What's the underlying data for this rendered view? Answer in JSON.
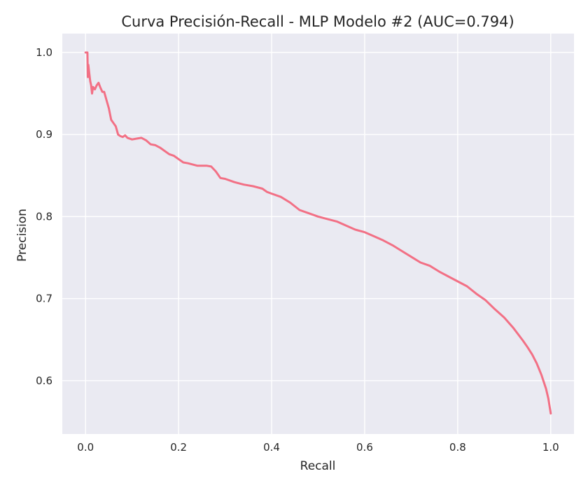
{
  "chart_data": {
    "type": "line",
    "title": "Curva Precisión-Recall - MLP Modelo #2 (AUC=0.794)",
    "xlabel": "Recall",
    "ylabel": "Precision",
    "xlim": [
      -0.05,
      1.05
    ],
    "ylim": [
      0.535,
      1.023
    ],
    "xticks": [
      0.0,
      0.2,
      0.4,
      0.6,
      0.8,
      1.0
    ],
    "xtick_labels": [
      "0.0",
      "0.2",
      "0.4",
      "0.6",
      "0.8",
      "1.0"
    ],
    "yticks": [
      0.6,
      0.7,
      0.8,
      0.9,
      1.0
    ],
    "ytick_labels": [
      "0.6",
      "0.7",
      "0.8",
      "0.9",
      "1.0"
    ],
    "grid": true,
    "background_color": "#eaeaf2",
    "series": [
      {
        "color": "#f27085",
        "points": [
          [
            0.0,
            1.0
          ],
          [
            0.004,
            1.0
          ],
          [
            0.005,
            0.97
          ],
          [
            0.006,
            0.985
          ],
          [
            0.008,
            0.975
          ],
          [
            0.01,
            0.965
          ],
          [
            0.012,
            0.96
          ],
          [
            0.014,
            0.95
          ],
          [
            0.016,
            0.958
          ],
          [
            0.02,
            0.955
          ],
          [
            0.024,
            0.96
          ],
          [
            0.028,
            0.963
          ],
          [
            0.032,
            0.957
          ],
          [
            0.036,
            0.952
          ],
          [
            0.04,
            0.952
          ],
          [
            0.045,
            0.942
          ],
          [
            0.05,
            0.932
          ],
          [
            0.055,
            0.918
          ],
          [
            0.06,
            0.914
          ],
          [
            0.065,
            0.91
          ],
          [
            0.07,
            0.9
          ],
          [
            0.075,
            0.898
          ],
          [
            0.08,
            0.897
          ],
          [
            0.085,
            0.899
          ],
          [
            0.09,
            0.896
          ],
          [
            0.1,
            0.894
          ],
          [
            0.11,
            0.895
          ],
          [
            0.12,
            0.896
          ],
          [
            0.13,
            0.893
          ],
          [
            0.14,
            0.888
          ],
          [
            0.15,
            0.887
          ],
          [
            0.16,
            0.884
          ],
          [
            0.17,
            0.88
          ],
          [
            0.18,
            0.876
          ],
          [
            0.19,
            0.874
          ],
          [
            0.2,
            0.87
          ],
          [
            0.21,
            0.866
          ],
          [
            0.22,
            0.865
          ],
          [
            0.24,
            0.862
          ],
          [
            0.26,
            0.862
          ],
          [
            0.27,
            0.861
          ],
          [
            0.28,
            0.855
          ],
          [
            0.29,
            0.847
          ],
          [
            0.3,
            0.846
          ],
          [
            0.32,
            0.842
          ],
          [
            0.34,
            0.839
          ],
          [
            0.36,
            0.837
          ],
          [
            0.38,
            0.834
          ],
          [
            0.39,
            0.83
          ],
          [
            0.4,
            0.828
          ],
          [
            0.42,
            0.824
          ],
          [
            0.44,
            0.817
          ],
          [
            0.46,
            0.808
          ],
          [
            0.48,
            0.804
          ],
          [
            0.5,
            0.8
          ],
          [
            0.52,
            0.797
          ],
          [
            0.54,
            0.794
          ],
          [
            0.56,
            0.789
          ],
          [
            0.58,
            0.784
          ],
          [
            0.6,
            0.781
          ],
          [
            0.62,
            0.776
          ],
          [
            0.64,
            0.771
          ],
          [
            0.66,
            0.765
          ],
          [
            0.68,
            0.758
          ],
          [
            0.7,
            0.751
          ],
          [
            0.72,
            0.744
          ],
          [
            0.74,
            0.74
          ],
          [
            0.76,
            0.733
          ],
          [
            0.78,
            0.727
          ],
          [
            0.8,
            0.721
          ],
          [
            0.82,
            0.715
          ],
          [
            0.84,
            0.706
          ],
          [
            0.86,
            0.698
          ],
          [
            0.88,
            0.687
          ],
          [
            0.9,
            0.677
          ],
          [
            0.92,
            0.664
          ],
          [
            0.94,
            0.649
          ],
          [
            0.95,
            0.641
          ],
          [
            0.96,
            0.632
          ],
          [
            0.97,
            0.621
          ],
          [
            0.98,
            0.607
          ],
          [
            0.99,
            0.59
          ],
          [
            0.995,
            0.578
          ],
          [
            1.0,
            0.56
          ]
        ]
      }
    ]
  }
}
